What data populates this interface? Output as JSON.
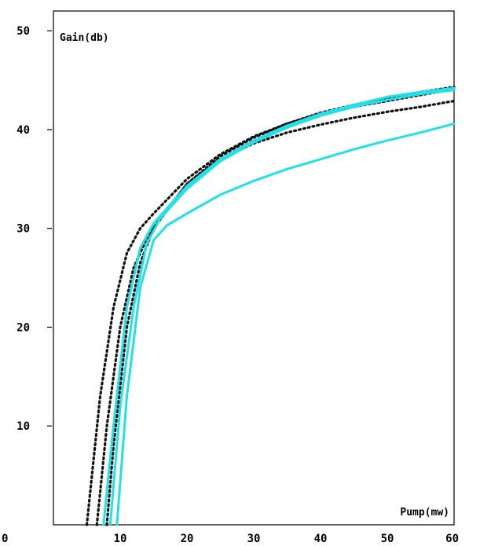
{
  "chart_data": {
    "type": "line",
    "ylabel": "Gain(db)",
    "xlabel": "Pump(mw)",
    "xlim": [
      0,
      60
    ],
    "ylim": [
      0,
      52
    ],
    "x_ticks": [
      0,
      10,
      20,
      30,
      40,
      50,
      60
    ],
    "x_tick_labels": [
      "0",
      "10",
      "20",
      "30",
      "40",
      "50",
      "60"
    ],
    "y_ticks": [
      10,
      20,
      30,
      40,
      50
    ],
    "y_tick_labels": [
      "10",
      "20",
      "30",
      "40",
      "50"
    ],
    "grid": false,
    "colors": {
      "cyan": "#22e0e6",
      "black": "#111111"
    },
    "series": [
      {
        "style": "dotted",
        "color": "black",
        "x": [
          5,
          7,
          9,
          11,
          13,
          15,
          20,
          25,
          30,
          35,
          40,
          45,
          50,
          55,
          60
        ],
        "y": [
          0,
          13,
          22,
          27.5,
          30,
          31.5,
          35,
          37.5,
          39.3,
          40.6,
          41.6,
          42.3,
          42.9,
          43.5,
          44.1
        ]
      },
      {
        "style": "dotted",
        "color": "black",
        "x": [
          6.5,
          8,
          10,
          12,
          14,
          16,
          20,
          25,
          30,
          35,
          40,
          45,
          50,
          55,
          60
        ],
        "y": [
          0,
          10,
          20,
          26,
          29,
          31,
          34.5,
          37,
          38.6,
          39.7,
          40.5,
          41.2,
          41.8,
          42.3,
          42.9
        ]
      },
      {
        "style": "dotted",
        "color": "black",
        "x": [
          8,
          9,
          11,
          13,
          15,
          20,
          25,
          30,
          35,
          40,
          45,
          50,
          55,
          60
        ],
        "y": [
          0,
          8,
          20,
          26.5,
          30,
          34.5,
          37.3,
          39.2,
          40.6,
          41.7,
          42.5,
          43.2,
          43.8,
          44.3
        ]
      },
      {
        "style": "solid",
        "color": "cyan",
        "x": [
          7.5,
          9,
          11,
          13,
          15,
          20,
          25,
          30,
          35,
          40,
          45,
          50,
          55,
          60
        ],
        "y": [
          0,
          10,
          22,
          28,
          30.5,
          34.3,
          37,
          38.9,
          40.4,
          41.6,
          42.5,
          43.3,
          43.8,
          44.2
        ]
      },
      {
        "style": "solid",
        "color": "cyan",
        "x": [
          8.5,
          10,
          12,
          14,
          16,
          20,
          25,
          30,
          35,
          40,
          45,
          50,
          55,
          60
        ],
        "y": [
          0,
          12,
          22,
          28.5,
          31,
          34,
          36.8,
          38.7,
          40.2,
          41.4,
          42.3,
          43,
          43.6,
          44
        ]
      },
      {
        "style": "solid",
        "color": "cyan",
        "x": [
          9.5,
          11,
          13,
          15,
          17,
          20,
          25,
          30,
          35,
          40,
          45,
          50,
          55,
          60
        ],
        "y": [
          0,
          13,
          24,
          28.8,
          30.3,
          31.5,
          33.4,
          34.8,
          36,
          37,
          38,
          38.9,
          39.7,
          40.6
        ]
      }
    ]
  }
}
